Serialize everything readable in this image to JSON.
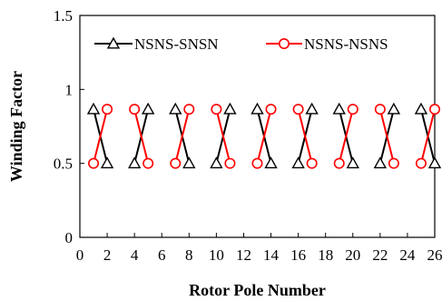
{
  "chart_data": {
    "type": "line",
    "title": "",
    "xlabel": "Rotor Pole Number",
    "ylabel": "Winding Factor",
    "xlim": [
      0,
      26
    ],
    "ylim": [
      0,
      1.5
    ],
    "xticks": [
      0,
      2,
      4,
      6,
      8,
      10,
      12,
      14,
      16,
      18,
      20,
      22,
      24,
      26
    ],
    "yticks": [
      0,
      0.5,
      1,
      1.5
    ],
    "ytick_labels": [
      "0",
      "0.5",
      "1",
      "1.5"
    ],
    "grid": false,
    "legend_position": "top",
    "series": [
      {
        "name": "NSNS-SNSN",
        "color": "#000000",
        "marker": "triangle",
        "x": [
          1,
          2,
          4,
          5,
          7,
          8,
          10,
          11,
          13,
          14,
          16,
          17,
          19,
          20,
          22,
          23,
          25,
          26
        ],
        "y": [
          0.866,
          0.5,
          0.5,
          0.866,
          0.866,
          0.5,
          0.5,
          0.866,
          0.866,
          0.5,
          0.5,
          0.866,
          0.866,
          0.5,
          0.5,
          0.866,
          0.866,
          0.5
        ]
      },
      {
        "name": "NSNS-NSNS",
        "color": "#ff0000",
        "marker": "circle",
        "x": [
          1,
          2,
          4,
          5,
          7,
          8,
          10,
          11,
          13,
          14,
          16,
          17,
          19,
          20,
          22,
          23,
          25,
          26
        ],
        "y": [
          0.5,
          0.866,
          0.866,
          0.5,
          0.5,
          0.866,
          0.866,
          0.5,
          0.5,
          0.866,
          0.866,
          0.5,
          0.5,
          0.866,
          0.866,
          0.5,
          0.5,
          0.866
        ]
      }
    ]
  }
}
